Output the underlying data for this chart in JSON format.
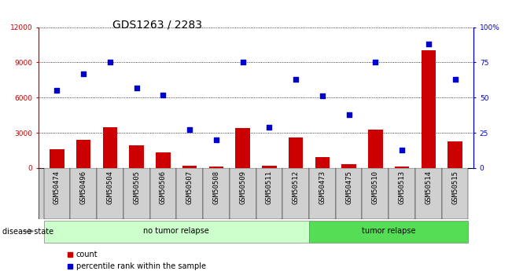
{
  "title": "GDS1263 / 2283",
  "categories": [
    "GSM50474",
    "GSM50496",
    "GSM50504",
    "GSM50505",
    "GSM50506",
    "GSM50507",
    "GSM50508",
    "GSM50509",
    "GSM50511",
    "GSM50512",
    "GSM50473",
    "GSM50475",
    "GSM50510",
    "GSM50513",
    "GSM50514",
    "GSM50515"
  ],
  "counts": [
    1600,
    2400,
    3500,
    1900,
    1300,
    200,
    150,
    3400,
    200,
    2600,
    900,
    350,
    3300,
    150,
    10000,
    2300
  ],
  "percentiles": [
    55,
    67,
    75,
    57,
    52,
    27,
    20,
    75,
    29,
    63,
    51,
    38,
    75,
    13,
    88,
    63
  ],
  "no_tumor_count": 10,
  "tumor_count": 6,
  "ylim_left": [
    0,
    12000
  ],
  "ylim_right": [
    0,
    100
  ],
  "yticks_left": [
    0,
    3000,
    6000,
    9000,
    12000
  ],
  "yticks_right": [
    0,
    25,
    50,
    75,
    100
  ],
  "bar_color": "#cc0000",
  "dot_color": "#0000cc",
  "no_tumor_color": "#ccffcc",
  "tumor_color": "#55dd55",
  "xtick_bg_color": "#d0d0d0",
  "title_fontsize": 10,
  "tick_fontsize": 6.5,
  "label_fontsize": 7.5
}
